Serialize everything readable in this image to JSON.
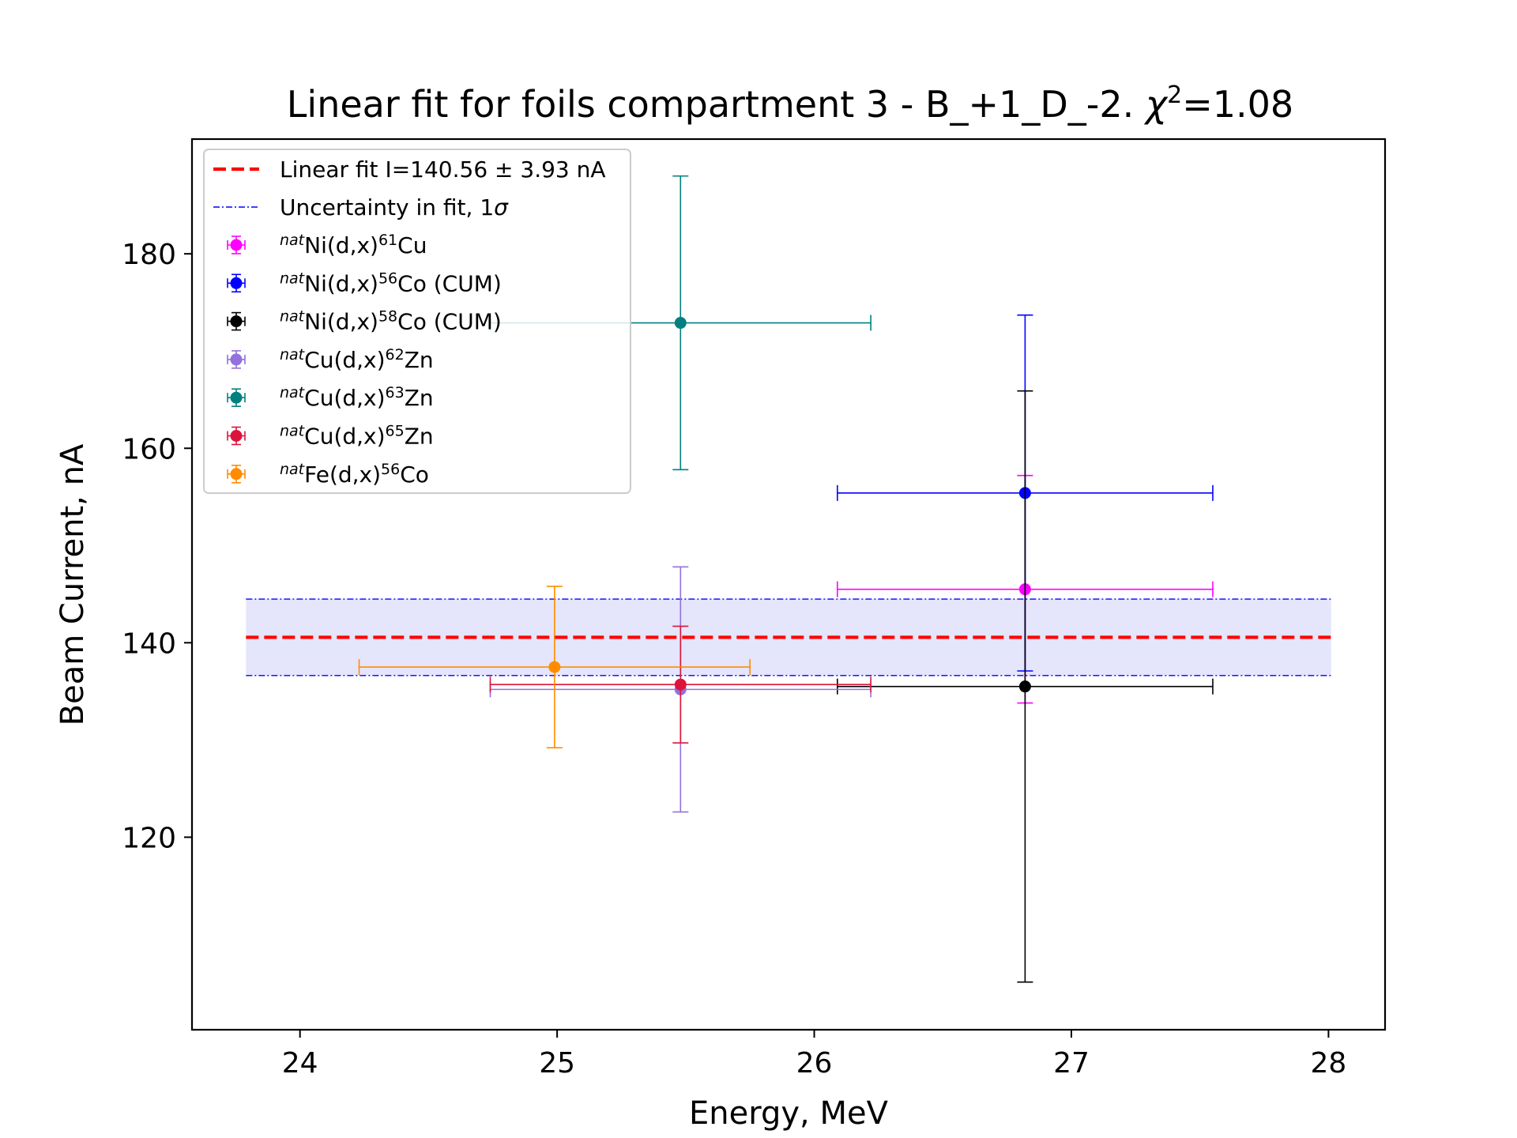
{
  "chart_data": {
    "type": "scatter",
    "title": "Linear fit for foils compartment 3 - B_+1_D_-2. χ²=1.08",
    "title_parts": {
      "main": "Linear fit for foils compartment 3 - B_+1_D_-2. ",
      "chi": "χ",
      "chi_exp": "2",
      "value": "=1.08"
    },
    "xlabel": "Energy, MeV",
    "ylabel": "Beam Current, nA",
    "xlim": [
      23.58,
      28.22
    ],
    "ylim": [
      100.2,
      191.8
    ],
    "xticks": [
      24,
      25,
      26,
      27,
      28
    ],
    "yticks": [
      120,
      140,
      160,
      180
    ],
    "grid": false,
    "legend_position": "top-left",
    "fit": {
      "label": "Linear fit I=140.56 ± 3.93 nA",
      "value": 140.56,
      "uncertainty": 3.93,
      "x_range": [
        23.79,
        28.01
      ],
      "color": "#ff0000",
      "band_color": "#e4e4fb",
      "band_edge_color": "#0000ff"
    },
    "uncertainty_label_parts": {
      "text": "Uncertainty in fit, 1",
      "sigma": "σ"
    },
    "series": [
      {
        "pre": "nat",
        "name": "Ni(d,x)",
        "iso": "61",
        "suffix": "Cu",
        "color": "#ff00ff",
        "points": [
          {
            "x": 26.82,
            "y": 145.5,
            "xerr": 0.73,
            "yerr": 11.7
          }
        ]
      },
      {
        "pre": "nat",
        "name": "Ni(d,x)",
        "iso": "56",
        "suffix": "Co (CUM)",
        "color": "#0000ff",
        "points": [
          {
            "x": 26.82,
            "y": 155.4,
            "xerr": 0.73,
            "yerr": 18.3
          }
        ]
      },
      {
        "pre": "nat",
        "name": "Ni(d,x)",
        "iso": "58",
        "suffix": "Co (CUM)",
        "color": "#000000",
        "points": [
          {
            "x": 26.82,
            "y": 135.5,
            "xerr": 0.73,
            "yerr": 30.4
          }
        ]
      },
      {
        "pre": "nat",
        "name": "Cu(d,x)",
        "iso": "62",
        "suffix": "Zn",
        "color": "#9370db",
        "points": [
          {
            "x": 25.48,
            "y": 135.2,
            "xerr": 0.74,
            "yerr": 12.6
          }
        ]
      },
      {
        "pre": "nat",
        "name": "Cu(d,x)",
        "iso": "63",
        "suffix": "Zn",
        "color": "#008080",
        "points": [
          {
            "x": 25.48,
            "y": 172.9,
            "xerr": 0.74,
            "yerr": 15.1
          }
        ]
      },
      {
        "pre": "nat",
        "name": "Cu(d,x)",
        "iso": "65",
        "suffix": "Zn",
        "color": "#dc143c",
        "points": [
          {
            "x": 25.48,
            "y": 135.7,
            "xerr": 0.74,
            "yerr": 6.0
          }
        ]
      },
      {
        "pre": "nat",
        "name": "Fe(d,x)",
        "iso": "56",
        "suffix": "Co",
        "color": "#ff8c00",
        "points": [
          {
            "x": 24.99,
            "y": 137.5,
            "xerr": 0.76,
            "yerr": 8.3
          }
        ]
      }
    ]
  }
}
